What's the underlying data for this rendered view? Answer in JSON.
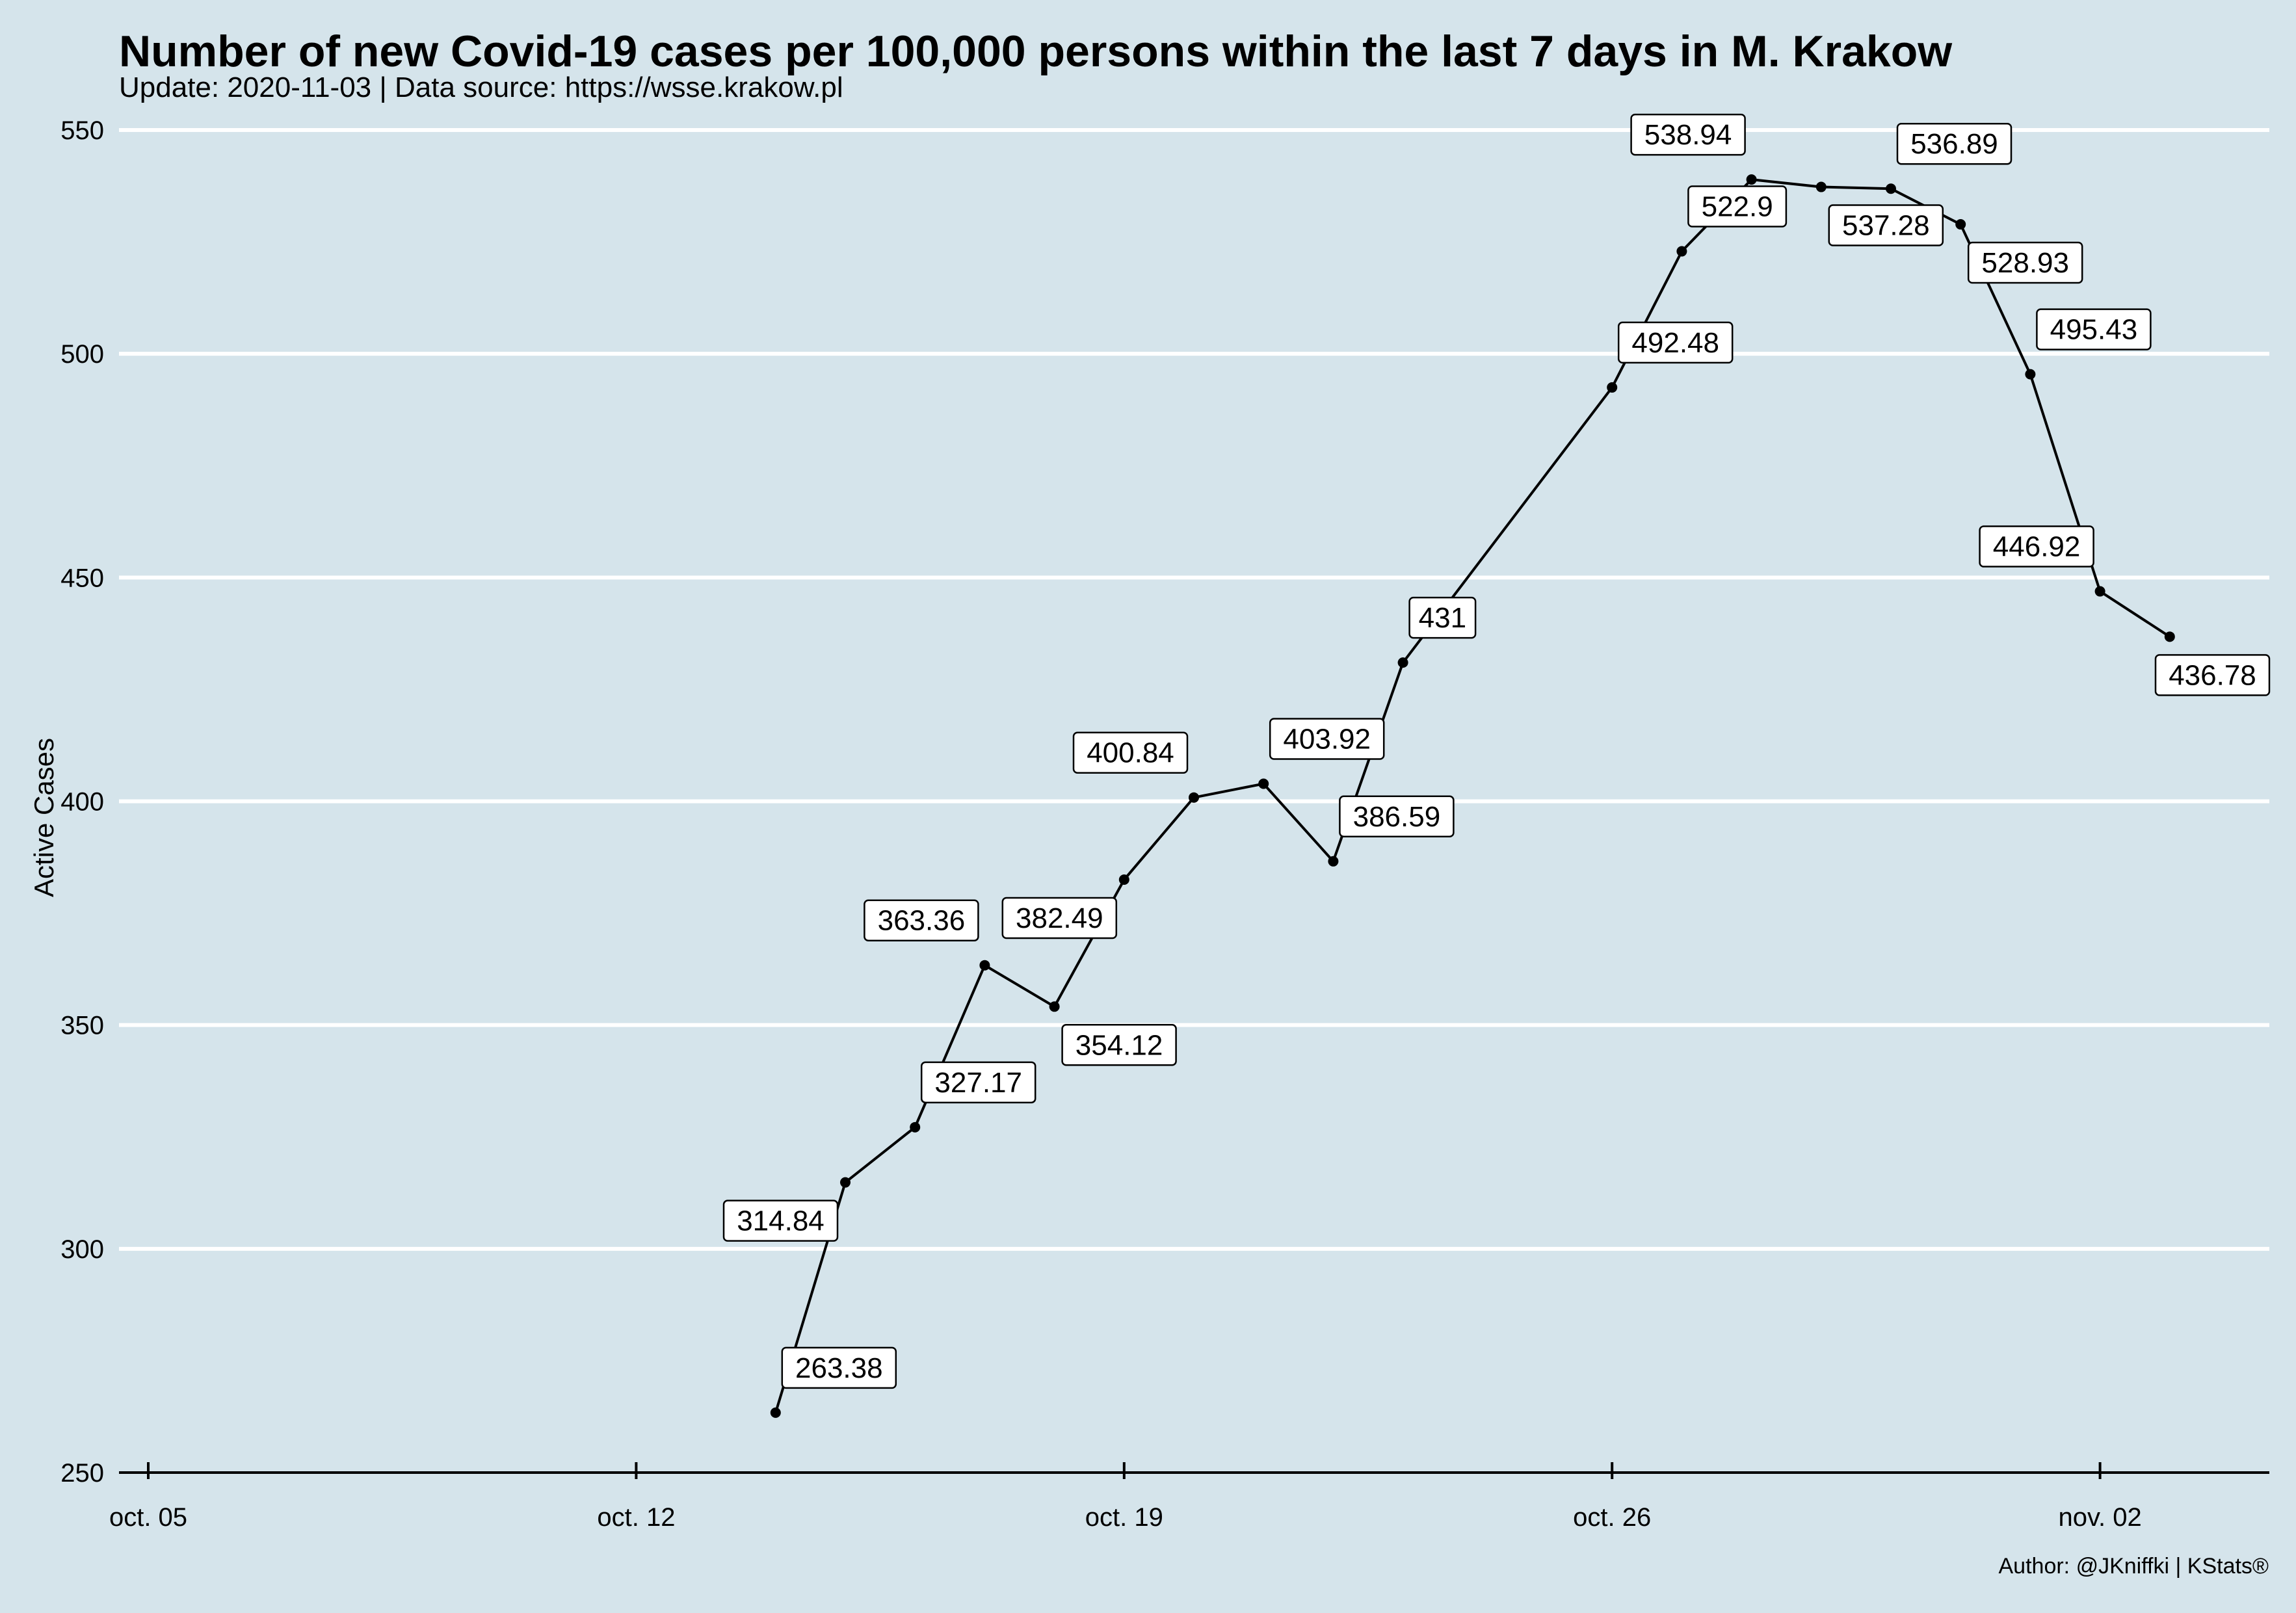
{
  "title": "Number of new Covid-19 cases per 100,000 persons within the last 7 days in M. Krakow",
  "subtitle": "Update: 2020-11-03 | Data source: https://wsse.krakow.pl",
  "caption": "Author: @JKniffki | KStats®",
  "chart_data": {
    "type": "line",
    "title": "Number of new Covid-19 cases per 100,000 persons within the last 7 days in M. Krakow",
    "subtitle": "Update: 2020-11-03 | Data source: https://wsse.krakow.pl",
    "xlabel": "",
    "ylabel": "Active Cases",
    "ylim": [
      250,
      550
    ],
    "yticks": [
      250,
      300,
      350,
      400,
      450,
      500,
      550
    ],
    "xticks": [
      {
        "date": "2020-10-05",
        "label": "oct. 05"
      },
      {
        "date": "2020-10-12",
        "label": "oct. 12"
      },
      {
        "date": "2020-10-19",
        "label": "oct. 19"
      },
      {
        "date": "2020-10-26",
        "label": "oct. 26"
      },
      {
        "date": "2020-11-02",
        "label": "nov. 02"
      }
    ],
    "grid": "horizontal",
    "legend": "none",
    "series": [
      {
        "points": [
          {
            "x": "2020-10-14",
            "y": 263.38,
            "label": "263.38",
            "pos": "above-right"
          },
          {
            "x": "2020-10-15",
            "y": 314.84,
            "label": "314.84",
            "pos": "below-left"
          },
          {
            "x": "2020-10-16",
            "y": 327.17,
            "label": "327.17",
            "pos": "above-right"
          },
          {
            "x": "2020-10-17",
            "y": 363.36,
            "label": "363.36",
            "pos": "above-left"
          },
          {
            "x": "2020-10-18",
            "y": 354.12,
            "label": "354.12",
            "pos": "below-right"
          },
          {
            "x": "2020-10-19",
            "y": 382.49,
            "label": "382.49",
            "pos": "below-left"
          },
          {
            "x": "2020-10-20",
            "y": 400.84,
            "label": "400.84",
            "pos": "above-left"
          },
          {
            "x": "2020-10-21",
            "y": 403.92,
            "label": "403.92",
            "pos": "above-right"
          },
          {
            "x": "2020-10-22",
            "y": 386.59,
            "label": "386.59",
            "pos": "above-right"
          },
          {
            "x": "2020-10-23",
            "y": 431,
            "label": "431",
            "pos": "above-right"
          },
          {
            "x": "2020-10-26",
            "y": 492.48,
            "label": "492.48",
            "pos": "above-right"
          },
          {
            "x": "2020-10-27",
            "y": 522.9,
            "label": "522.9",
            "pos": "above-right"
          },
          {
            "x": "2020-10-28",
            "y": 538.94,
            "label": "538.94",
            "pos": "above-left"
          },
          {
            "x": "2020-10-29",
            "y": 537.28,
            "label": "537.28",
            "pos": "below-right"
          },
          {
            "x": "2020-10-30",
            "y": 536.89,
            "label": "536.89",
            "pos": "above-right"
          },
          {
            "x": "2020-10-31",
            "y": 528.93,
            "label": "528.93",
            "pos": "below-right"
          },
          {
            "x": "2020-11-01",
            "y": 495.43,
            "label": "495.43",
            "pos": "above-right"
          },
          {
            "x": "2020-11-02",
            "y": 446.92,
            "label": "446.92",
            "pos": "above-left"
          },
          {
            "x": "2020-11-03",
            "y": 436.78,
            "label": "436.78",
            "pos": "below-right"
          }
        ]
      }
    ]
  }
}
